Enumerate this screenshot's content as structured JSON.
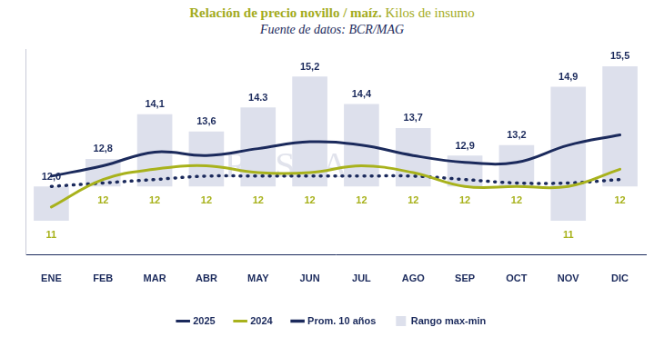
{
  "chart_data": {
    "type": "bar",
    "title": "Relación de precio novillo / maíz.",
    "ylabel": "Kilos de insumo",
    "subtitle": "Fuente de datos: BCR/MAG",
    "annotation": "ROSGAN",
    "categories": [
      "ENE",
      "FEB",
      "MAR",
      "ABR",
      "MAY",
      "JUN",
      "JUL",
      "AGO",
      "SEP",
      "OCT",
      "NOV",
      "DIC"
    ],
    "ylim": [
      10,
      16
    ],
    "tick_labels": "x",
    "grid": false,
    "legend": "bottom",
    "data_labels": true,
    "series": [
      {
        "name": "Rango max-min",
        "type": "bar",
        "color": "#dde0ec",
        "values": [
          [
            11,
            12.0
          ],
          [
            12,
            12.8
          ],
          [
            12,
            14.1
          ],
          [
            12,
            13.6
          ],
          [
            12,
            14.3
          ],
          [
            12,
            15.2
          ],
          [
            12,
            14.4
          ],
          [
            12,
            13.7
          ],
          [
            12,
            12.9
          ],
          [
            12,
            13.2
          ],
          [
            11,
            14.9
          ],
          [
            12,
            15.5
          ]
        ],
        "value_labels": [
          [
            "11",
            "12,0"
          ],
          [
            "12",
            "12,8"
          ],
          [
            "12",
            "14,1"
          ],
          [
            "12",
            "13,6"
          ],
          [
            "12",
            "14.3"
          ],
          [
            "12",
            "15,2"
          ],
          [
            "12",
            "14,4"
          ],
          [
            "12",
            "13,7"
          ],
          [
            "12",
            "12,9"
          ],
          [
            "12",
            "13,2"
          ],
          [
            "11",
            "14,9"
          ],
          [
            "12",
            "15,5"
          ]
        ]
      },
      {
        "name": "Prom. 10 años",
        "type": "line",
        "line_style": "dotted",
        "color": "#1b2a5c",
        "values": [
          12.0,
          12.1,
          12.2,
          12.3,
          12.3,
          12.3,
          12.3,
          12.3,
          12.2,
          12.1,
          12.1,
          12.2
        ]
      },
      {
        "name": "2024",
        "type": "line",
        "line_style": "solid",
        "color": "#a8b21c",
        "values": [
          11.4,
          12.2,
          12.5,
          12.6,
          12.4,
          12.4,
          12.6,
          12.4,
          12.0,
          12.0,
          12.0,
          12.5
        ]
      },
      {
        "name": "2025",
        "type": "line",
        "line_style": "solid",
        "color": "#1b2a5c",
        "values": [
          12.3,
          12.6,
          13.0,
          12.9,
          13.1,
          13.3,
          13.2,
          12.9,
          12.7,
          12.7,
          13.2,
          13.5
        ]
      }
    ]
  }
}
